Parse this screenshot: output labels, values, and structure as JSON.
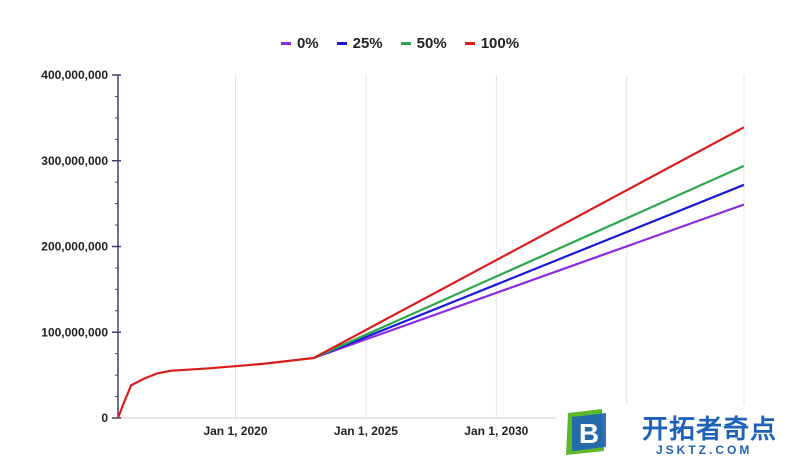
{
  "chart_data": {
    "type": "line",
    "title": "",
    "xlabel": "",
    "ylabel": "",
    "x_ticks": [
      "Jan 1, 2020",
      "Jan 1, 2025",
      "Jan 1, 2030"
    ],
    "y_ticks": [
      "0",
      "100,000,000",
      "200,000,000",
      "300,000,000",
      "400,000,000"
    ],
    "ylim": [
      0,
      400000000
    ],
    "xlim": [
      "2015-07-01",
      "2039-07-01"
    ],
    "grid": true,
    "legend": "top-center",
    "series": [
      {
        "name": "0%",
        "color": "#8b2be2",
        "points": [
          [
            "2023-01-01",
            70000000
          ],
          [
            "2039-07-01",
            249000000
          ]
        ]
      },
      {
        "name": "25%",
        "color": "#1a1ad6",
        "points": [
          [
            "2023-01-01",
            70000000
          ],
          [
            "2039-07-01",
            272000000
          ]
        ]
      },
      {
        "name": "50%",
        "color": "#2ea84a",
        "points": [
          [
            "2023-01-01",
            70000000
          ],
          [
            "2039-07-01",
            294000000
          ]
        ]
      },
      {
        "name": "100%",
        "color": "#d91c1c",
        "points": [
          [
            "2015-07-01",
            0
          ],
          [
            "2015-10-01",
            20000000
          ],
          [
            "2016-01-01",
            38000000
          ],
          [
            "2016-07-01",
            46000000
          ],
          [
            "2017-01-01",
            52000000
          ],
          [
            "2017-07-01",
            55000000
          ],
          [
            "2019-01-01",
            58000000
          ],
          [
            "2021-01-01",
            63000000
          ],
          [
            "2023-01-01",
            70000000
          ],
          [
            "2039-07-01",
            339000000
          ]
        ]
      }
    ]
  },
  "logo": {
    "mark_letter": "B",
    "name": "开拓者奇点",
    "domain": "JSKTZ.COM"
  },
  "colors": {
    "grid": "#e4e4e4",
    "axis": "#4a3a6a",
    "logo_blue": "#1e63b8",
    "logo_green": "#5cb82a"
  }
}
